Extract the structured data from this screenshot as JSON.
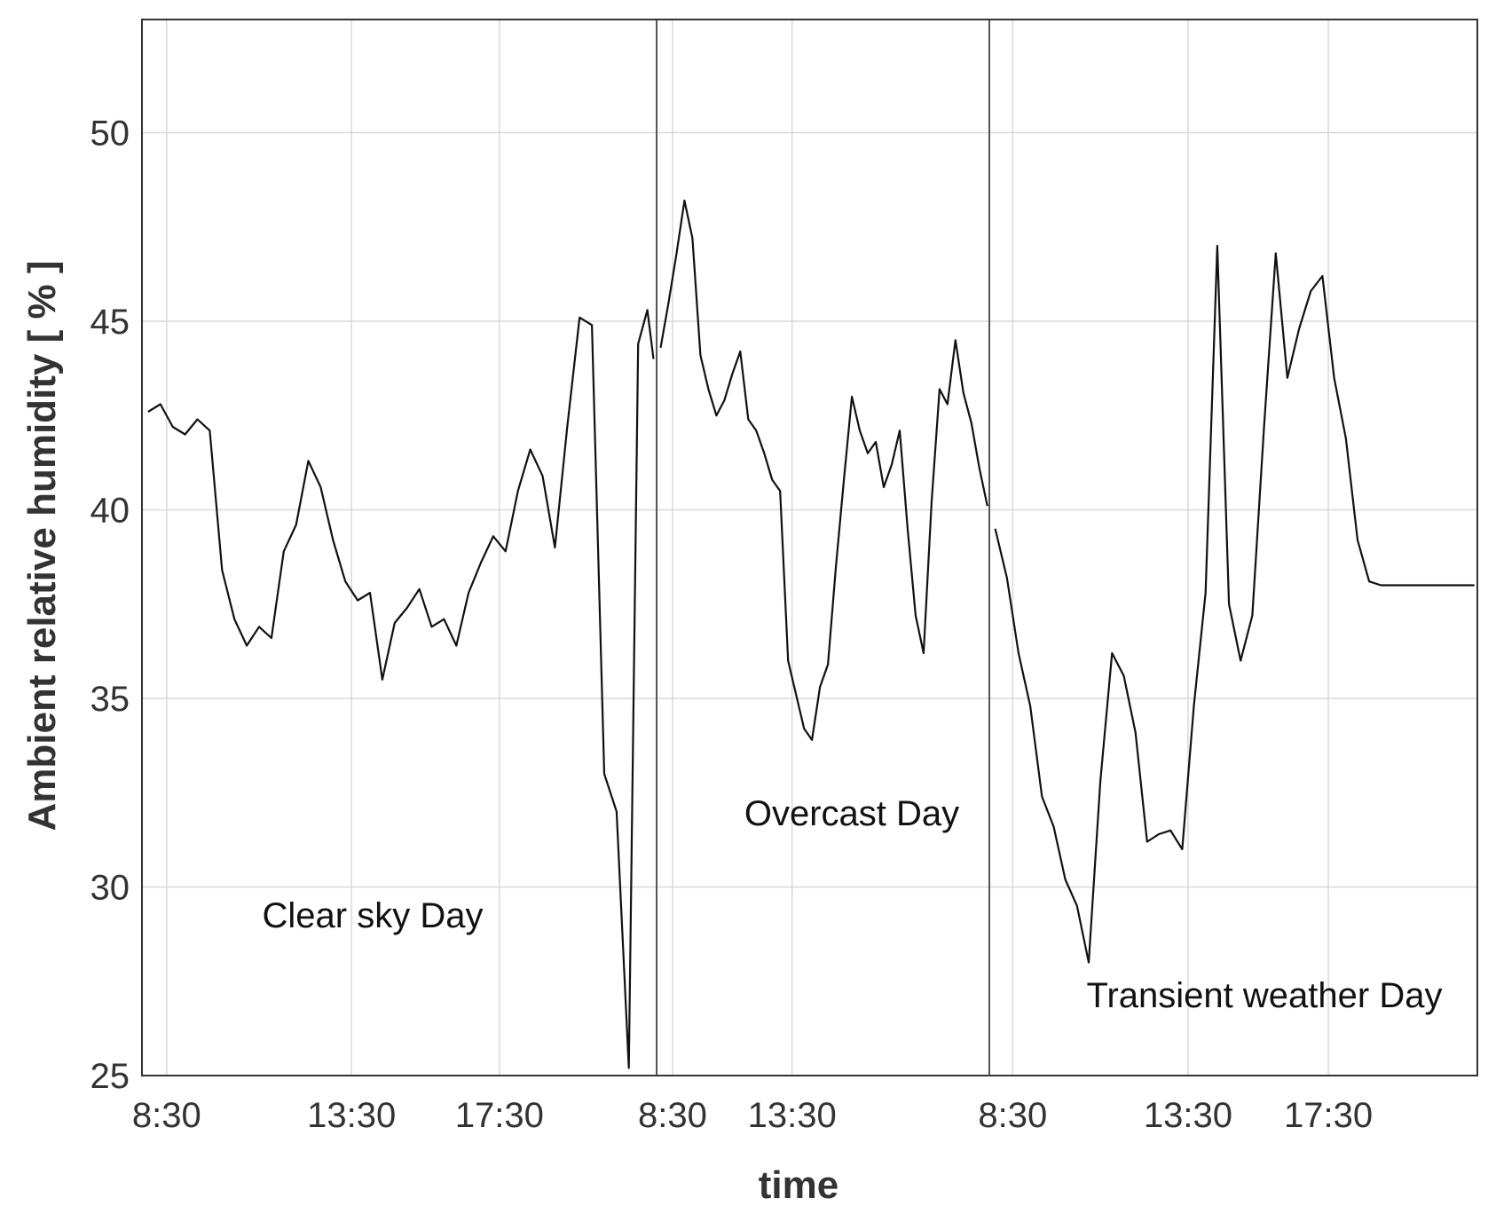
{
  "chart_data": {
    "type": "line",
    "xlabel": "time",
    "ylabel": "Ambient relative humidity [ % ]",
    "ylim": [
      25,
      53
    ],
    "yticks": [
      25,
      30,
      35,
      40,
      45,
      50
    ],
    "grid": true,
    "line_color": "#111111",
    "day_separator_color": "#555555",
    "days": [
      {
        "annotation": "Clear sky Day",
        "xlim": [
          "07:50",
          "21:45"
        ],
        "xticks": [
          "8:30",
          "13:30",
          "17:30"
        ],
        "series": {
          "x": [
            "08:00",
            "08:20",
            "08:40",
            "09:00",
            "09:20",
            "09:40",
            "10:00",
            "10:20",
            "10:40",
            "11:00",
            "11:20",
            "11:40",
            "12:00",
            "12:20",
            "12:40",
            "13:00",
            "13:20",
            "13:40",
            "14:00",
            "14:20",
            "14:40",
            "15:00",
            "15:20",
            "15:40",
            "16:00",
            "16:20",
            "16:40",
            "17:00",
            "17:20",
            "17:40",
            "18:00",
            "18:20",
            "18:40",
            "19:00",
            "19:20",
            "19:40",
            "20:00",
            "20:20",
            "20:40",
            "21:00",
            "21:15",
            "21:30",
            "21:40"
          ],
          "y": [
            42.6,
            42.8,
            42.2,
            42.0,
            42.4,
            42.1,
            38.4,
            37.1,
            36.4,
            36.9,
            36.6,
            38.9,
            39.6,
            41.3,
            40.6,
            39.2,
            38.1,
            37.6,
            37.8,
            35.5,
            37.0,
            37.4,
            37.9,
            36.9,
            37.1,
            36.4,
            37.8,
            38.6,
            39.3,
            38.9,
            40.5,
            41.6,
            40.9,
            39.0,
            42.2,
            45.1,
            44.9,
            33.0,
            32.0,
            25.2,
            44.4,
            45.3,
            44.0
          ]
        }
      },
      {
        "annotation": "Overcast Day",
        "xlim": [
          "07:50",
          "21:45"
        ],
        "xticks": [
          "8:30",
          "13:30"
        ],
        "series": {
          "x": [
            "08:00",
            "08:20",
            "08:40",
            "09:00",
            "09:20",
            "09:40",
            "10:00",
            "10:20",
            "10:40",
            "11:00",
            "11:20",
            "11:40",
            "12:00",
            "12:20",
            "12:40",
            "13:00",
            "13:20",
            "13:40",
            "14:00",
            "14:20",
            "14:40",
            "15:00",
            "15:20",
            "15:40",
            "16:00",
            "16:20",
            "16:40",
            "17:00",
            "17:20",
            "17:40",
            "18:00",
            "18:20",
            "18:40",
            "19:00",
            "19:20",
            "19:40",
            "20:00",
            "20:20",
            "20:40",
            "21:00",
            "21:20",
            "21:40"
          ],
          "y": [
            44.3,
            45.5,
            46.8,
            48.2,
            47.2,
            44.1,
            43.2,
            42.5,
            42.9,
            43.6,
            44.2,
            42.4,
            42.1,
            41.5,
            40.8,
            40.5,
            36.0,
            35.1,
            34.2,
            33.9,
            35.3,
            35.9,
            38.5,
            40.8,
            43.0,
            42.1,
            41.5,
            41.8,
            40.6,
            41.2,
            42.1,
            39.5,
            37.2,
            36.2,
            40.2,
            43.2,
            42.8,
            44.5,
            43.1,
            42.3,
            41.1,
            40.1
          ]
        }
      },
      {
        "annotation": "Transient weather Day",
        "xlim": [
          "07:50",
          "21:45"
        ],
        "xticks": [
          "8:30",
          "13:30",
          "17:30"
        ],
        "series": {
          "x": [
            "08:00",
            "08:20",
            "08:40",
            "09:00",
            "09:20",
            "09:40",
            "10:00",
            "10:20",
            "10:40",
            "11:00",
            "11:20",
            "11:40",
            "12:00",
            "12:20",
            "12:40",
            "13:00",
            "13:20",
            "13:40",
            "14:00",
            "14:20",
            "14:40",
            "15:00",
            "15:20",
            "15:40",
            "16:00",
            "16:20",
            "16:40",
            "17:00",
            "17:20",
            "17:40",
            "18:00",
            "18:20",
            "18:40",
            "19:00",
            "19:20",
            "19:40",
            "20:00",
            "20:20",
            "20:40",
            "21:00",
            "21:20",
            "21:40"
          ],
          "y": [
            39.5,
            38.2,
            36.2,
            34.8,
            32.4,
            31.6,
            30.2,
            29.5,
            28.0,
            32.8,
            36.2,
            35.6,
            34.1,
            31.2,
            31.4,
            31.5,
            31.0,
            34.8,
            37.8,
            47.0,
            37.5,
            36.0,
            37.2,
            42.2,
            46.8,
            43.5,
            44.8,
            45.8,
            46.2,
            43.5,
            41.9,
            39.2,
            38.1,
            38.0,
            38.0,
            38.0,
            38.0,
            38.0,
            38.0,
            38.0,
            38.0,
            38.0
          ]
        }
      }
    ]
  }
}
